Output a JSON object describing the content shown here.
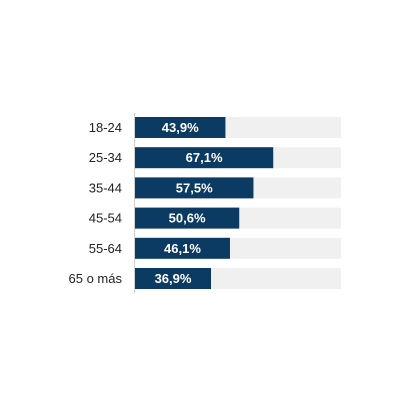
{
  "chart_data": {
    "type": "bar",
    "orientation": "horizontal",
    "categories": [
      "18-24",
      "25-34",
      "35-44",
      "45-54",
      "55-64",
      "65 o más"
    ],
    "values": [
      43.9,
      67.1,
      57.5,
      50.6,
      46.1,
      36.9
    ],
    "value_labels": [
      "43,9%",
      "67,1%",
      "57,5%",
      "50,6%",
      "46,1%",
      "36,9%"
    ],
    "xlim": [
      0,
      100
    ],
    "title": "",
    "xlabel": "",
    "ylabel": "",
    "grid": false,
    "legend": "none"
  },
  "colors": {
    "bar": "#0b3a63",
    "track": "#f0f0f0",
    "axis": "#d0d0d0",
    "label": "#222222",
    "value_text": "#ffffff"
  }
}
